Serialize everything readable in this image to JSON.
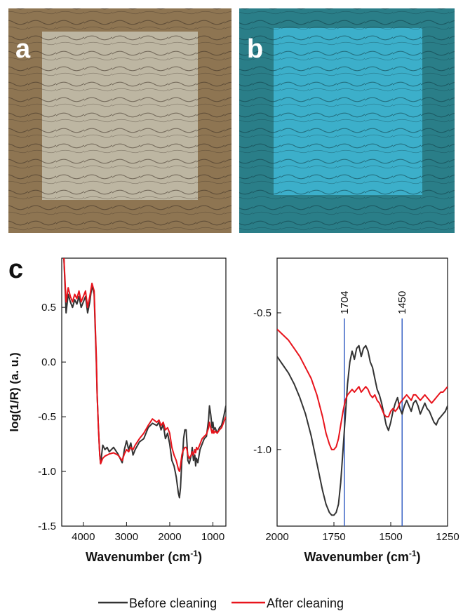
{
  "panels": {
    "a": {
      "letter": "a",
      "colors": {
        "base": "#8e7552",
        "patch": "#c6c2b0",
        "crack": "#3a2e22"
      }
    },
    "b": {
      "letter": "b",
      "colors": {
        "base": "#2a7e88",
        "patch": "#3fb7d6",
        "crack": "#0f3a44"
      }
    },
    "c": {
      "letter": "c"
    }
  },
  "legend": {
    "items": [
      {
        "label": "Before cleaning",
        "color": "#333333"
      },
      {
        "label": "After cleaning",
        "color": "#e8141c"
      }
    ]
  },
  "chart_data": [
    {
      "type": "line",
      "xlabel": "Wavenumber (cm",
      "xlabel_sup": "-1",
      "xlabel_suffix": ")",
      "ylabel": "log(1/R) (a. u.)",
      "xlim": [
        4500,
        700
      ],
      "ylim": [
        -1.5,
        0.95
      ],
      "xticks": [
        4000,
        3000,
        2000,
        1000
      ],
      "yticks": [
        0.5,
        0.0,
        -0.5,
        -1.0,
        -1.5
      ],
      "ytick_labels": [
        "0.5",
        "0.0",
        "-0.5",
        "-1.0",
        "-1.5"
      ],
      "series": [
        {
          "name": "Before cleaning",
          "color": "#333333",
          "x": [
            4450,
            4400,
            4350,
            4300,
            4250,
            4200,
            4150,
            4100,
            4050,
            4000,
            3950,
            3900,
            3850,
            3800,
            3750,
            3720,
            3700,
            3680,
            3650,
            3620,
            3600,
            3550,
            3500,
            3450,
            3400,
            3300,
            3200,
            3100,
            3050,
            3000,
            2950,
            2900,
            2850,
            2800,
            2700,
            2600,
            2500,
            2400,
            2300,
            2250,
            2200,
            2150,
            2100,
            2050,
            2000,
            1950,
            1900,
            1850,
            1800,
            1775,
            1750,
            1720,
            1700,
            1680,
            1650,
            1620,
            1600,
            1580,
            1550,
            1500,
            1480,
            1450,
            1420,
            1400,
            1380,
            1350,
            1300,
            1250,
            1200,
            1150,
            1100,
            1080,
            1050,
            1020,
            1000,
            980,
            950,
            900,
            850,
            800,
            750,
            700
          ],
          "y": [
            0.95,
            0.45,
            0.62,
            0.55,
            0.5,
            0.57,
            0.53,
            0.6,
            0.5,
            0.55,
            0.6,
            0.45,
            0.55,
            0.7,
            0.62,
            0.25,
            0.0,
            -0.3,
            -0.6,
            -0.85,
            -0.93,
            -0.76,
            -0.8,
            -0.78,
            -0.82,
            -0.78,
            -0.84,
            -0.92,
            -0.8,
            -0.72,
            -0.8,
            -0.74,
            -0.85,
            -0.8,
            -0.73,
            -0.7,
            -0.6,
            -0.56,
            -0.58,
            -0.55,
            -0.62,
            -0.57,
            -0.7,
            -0.65,
            -0.75,
            -0.9,
            -0.95,
            -1.05,
            -1.2,
            -1.24,
            -1.15,
            -0.9,
            -0.85,
            -0.7,
            -0.62,
            -0.62,
            -0.75,
            -0.9,
            -0.93,
            -0.85,
            -0.78,
            -0.9,
            -0.85,
            -0.95,
            -0.88,
            -0.92,
            -0.8,
            -0.75,
            -0.7,
            -0.68,
            -0.52,
            -0.4,
            -0.48,
            -0.6,
            -0.55,
            -0.62,
            -0.6,
            -0.65,
            -0.6,
            -0.58,
            -0.5,
            -0.4
          ]
        },
        {
          "name": "After cleaning",
          "color": "#e8141c",
          "x": [
            4450,
            4400,
            4350,
            4300,
            4250,
            4200,
            4150,
            4100,
            4050,
            4000,
            3950,
            3900,
            3850,
            3800,
            3750,
            3720,
            3700,
            3680,
            3650,
            3620,
            3600,
            3550,
            3500,
            3450,
            3400,
            3300,
            3200,
            3100,
            3050,
            3000,
            2950,
            2900,
            2850,
            2800,
            2700,
            2600,
            2500,
            2400,
            2300,
            2250,
            2200,
            2150,
            2100,
            2050,
            2000,
            1950,
            1900,
            1850,
            1800,
            1775,
            1750,
            1720,
            1700,
            1680,
            1650,
            1620,
            1600,
            1580,
            1550,
            1500,
            1480,
            1450,
            1420,
            1400,
            1380,
            1350,
            1300,
            1250,
            1200,
            1150,
            1100,
            1080,
            1050,
            1020,
            1000,
            980,
            950,
            900,
            850,
            800,
            750,
            700
          ],
          "y": [
            0.95,
            0.55,
            0.68,
            0.6,
            0.55,
            0.62,
            0.58,
            0.65,
            0.55,
            0.6,
            0.65,
            0.5,
            0.6,
            0.72,
            0.65,
            0.3,
            0.05,
            -0.3,
            -0.6,
            -0.85,
            -0.93,
            -0.88,
            -0.86,
            -0.85,
            -0.84,
            -0.83,
            -0.85,
            -0.9,
            -0.84,
            -0.8,
            -0.82,
            -0.78,
            -0.8,
            -0.76,
            -0.7,
            -0.65,
            -0.58,
            -0.52,
            -0.55,
            -0.53,
            -0.58,
            -0.55,
            -0.62,
            -0.6,
            -0.65,
            -0.78,
            -0.85,
            -0.9,
            -0.98,
            -1.0,
            -0.95,
            -0.85,
            -0.82,
            -0.8,
            -0.78,
            -0.78,
            -0.8,
            -0.85,
            -0.88,
            -0.85,
            -0.82,
            -0.85,
            -0.8,
            -0.83,
            -0.78,
            -0.8,
            -0.75,
            -0.7,
            -0.68,
            -0.66,
            -0.6,
            -0.55,
            -0.6,
            -0.65,
            -0.62,
            -0.65,
            -0.63,
            -0.65,
            -0.62,
            -0.6,
            -0.55,
            -0.5
          ]
        }
      ]
    },
    {
      "type": "line",
      "xlabel": "Wavenumber (cm",
      "xlabel_sup": "-1",
      "xlabel_suffix": ")",
      "ylabel": "",
      "xlim": [
        2000,
        1250
      ],
      "ylim": [
        -1.28,
        -0.3
      ],
      "xticks": [
        2000,
        1750,
        1500,
        1250
      ],
      "yticks": [
        -0.5,
        -1.0
      ],
      "ytick_labels": [
        "-0.5",
        "-1.0"
      ],
      "annotations": [
        {
          "x": 1704,
          "label": "1704",
          "color": "#2b57c0"
        },
        {
          "x": 1450,
          "label": "1450",
          "color": "#2b57c0"
        }
      ],
      "series": [
        {
          "name": "Before cleaning",
          "color": "#333333",
          "x": [
            2000,
            1975,
            1950,
            1925,
            1900,
            1875,
            1850,
            1825,
            1800,
            1785,
            1770,
            1760,
            1750,
            1740,
            1730,
            1720,
            1710,
            1700,
            1690,
            1680,
            1670,
            1660,
            1650,
            1640,
            1630,
            1620,
            1610,
            1600,
            1590,
            1580,
            1570,
            1560,
            1550,
            1540,
            1530,
            1520,
            1510,
            1500,
            1490,
            1480,
            1470,
            1460,
            1450,
            1440,
            1430,
            1420,
            1410,
            1400,
            1390,
            1380,
            1370,
            1360,
            1350,
            1340,
            1330,
            1320,
            1310,
            1300,
            1290,
            1280,
            1270,
            1260,
            1250
          ],
          "y": [
            -0.66,
            -0.69,
            -0.72,
            -0.76,
            -0.81,
            -0.87,
            -0.95,
            -1.05,
            -1.15,
            -1.2,
            -1.23,
            -1.24,
            -1.24,
            -1.23,
            -1.2,
            -1.12,
            -1.0,
            -0.88,
            -0.76,
            -0.68,
            -0.64,
            -0.67,
            -0.63,
            -0.62,
            -0.66,
            -0.63,
            -0.62,
            -0.64,
            -0.68,
            -0.7,
            -0.74,
            -0.78,
            -0.8,
            -0.83,
            -0.87,
            -0.91,
            -0.93,
            -0.9,
            -0.86,
            -0.83,
            -0.81,
            -0.85,
            -0.87,
            -0.84,
            -0.82,
            -0.84,
            -0.86,
            -0.83,
            -0.82,
            -0.84,
            -0.87,
            -0.85,
            -0.83,
            -0.85,
            -0.86,
            -0.88,
            -0.9,
            -0.91,
            -0.89,
            -0.88,
            -0.87,
            -0.86,
            -0.84
          ]
        },
        {
          "name": "After cleaning",
          "color": "#e8141c",
          "x": [
            2000,
            1975,
            1950,
            1925,
            1900,
            1875,
            1850,
            1825,
            1800,
            1785,
            1770,
            1760,
            1750,
            1740,
            1730,
            1720,
            1710,
            1700,
            1690,
            1680,
            1670,
            1660,
            1650,
            1640,
            1630,
            1620,
            1610,
            1600,
            1590,
            1580,
            1570,
            1560,
            1550,
            1540,
            1530,
            1520,
            1510,
            1500,
            1490,
            1480,
            1470,
            1460,
            1450,
            1440,
            1430,
            1420,
            1410,
            1400,
            1390,
            1380,
            1370,
            1360,
            1350,
            1340,
            1330,
            1320,
            1310,
            1300,
            1290,
            1280,
            1270,
            1260,
            1250
          ],
          "y": [
            -0.56,
            -0.58,
            -0.6,
            -0.63,
            -0.66,
            -0.7,
            -0.74,
            -0.8,
            -0.88,
            -0.94,
            -0.98,
            -1.0,
            -1.0,
            -0.99,
            -0.96,
            -0.91,
            -0.86,
            -0.82,
            -0.8,
            -0.79,
            -0.78,
            -0.79,
            -0.78,
            -0.77,
            -0.79,
            -0.78,
            -0.77,
            -0.78,
            -0.8,
            -0.81,
            -0.8,
            -0.82,
            -0.83,
            -0.85,
            -0.87,
            -0.88,
            -0.88,
            -0.86,
            -0.85,
            -0.86,
            -0.85,
            -0.83,
            -0.82,
            -0.81,
            -0.8,
            -0.81,
            -0.82,
            -0.8,
            -0.8,
            -0.81,
            -0.82,
            -0.81,
            -0.8,
            -0.81,
            -0.82,
            -0.83,
            -0.82,
            -0.81,
            -0.8,
            -0.79,
            -0.79,
            -0.78,
            -0.77
          ]
        }
      ]
    }
  ]
}
